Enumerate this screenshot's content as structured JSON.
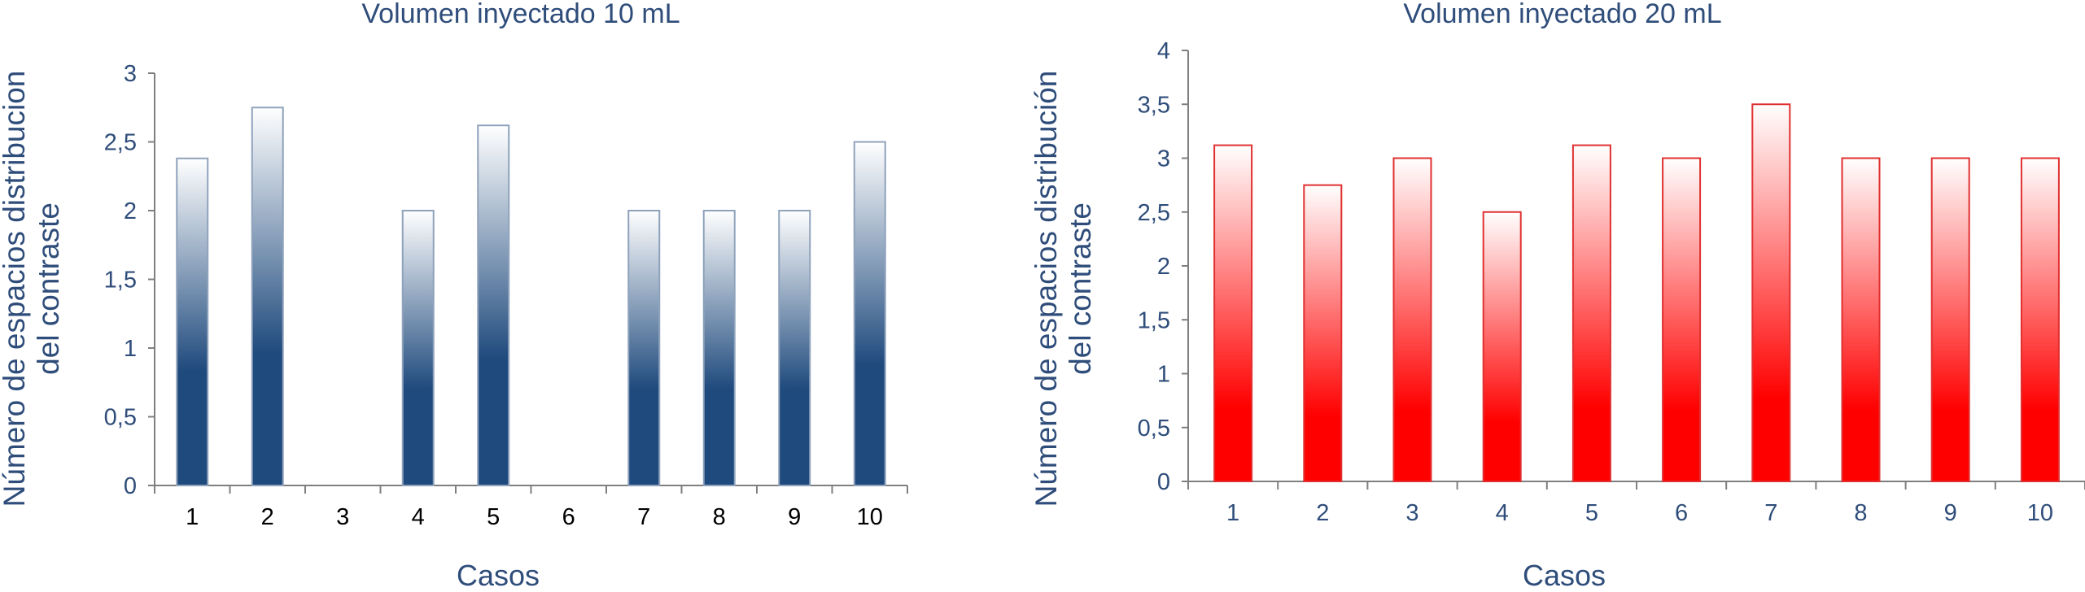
{
  "chart_data": [
    {
      "type": "bar",
      "title": "Volumen inyectado 10 mL",
      "xlabel": "Casos",
      "ylabel": [
        "Número de espacios distribucion",
        "del contraste"
      ],
      "categories": [
        "1",
        "2",
        "3",
        "4",
        "5",
        "6",
        "7",
        "8",
        "9",
        "10"
      ],
      "values": [
        2.38,
        2.75,
        0,
        2.0,
        2.62,
        0,
        2.0,
        2.0,
        2.0,
        2.5
      ],
      "ylim": [
        0,
        3
      ],
      "yticks": [
        "0",
        "0,5",
        "1",
        "1,5",
        "2",
        "2,5",
        "3"
      ],
      "grid": false,
      "bar_color": "#1f4a7d",
      "text_color": "#2f4d7a",
      "xtick_color": "#000000"
    },
    {
      "type": "bar",
      "title": "Volumen inyectado 20 mL",
      "xlabel": "Casos",
      "ylabel": [
        "Número de espacios distribución",
        "del contraste"
      ],
      "categories": [
        "1",
        "2",
        "3",
        "4",
        "5",
        "6",
        "7",
        "8",
        "9",
        "10"
      ],
      "values": [
        3.12,
        2.75,
        3.0,
        2.5,
        3.12,
        3.0,
        3.5,
        3.0,
        3.0,
        3.0
      ],
      "ylim": [
        0,
        4
      ],
      "yticks": [
        "0",
        "0,5",
        "1",
        "1,5",
        "2",
        "2,5",
        "3",
        "3,5",
        "4"
      ],
      "grid": false,
      "bar_color": "#ff0000",
      "text_color": "#2f4d7a",
      "xtick_color": "#2f4d7a"
    }
  ]
}
